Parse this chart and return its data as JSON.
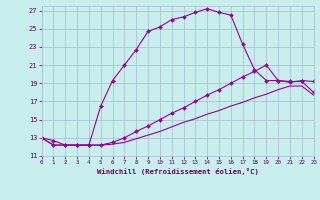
{
  "bg_color": "#c8eeee",
  "line_color": "#990099",
  "grid_color": "#aabbcc",
  "xlim": [
    0,
    23
  ],
  "ylim": [
    11,
    27.5
  ],
  "yticks": [
    11,
    13,
    15,
    17,
    19,
    21,
    23,
    25,
    27
  ],
  "xticks": [
    0,
    1,
    2,
    3,
    4,
    5,
    6,
    7,
    8,
    9,
    10,
    11,
    12,
    13,
    14,
    15,
    16,
    17,
    18,
    19,
    20,
    21,
    22,
    23
  ],
  "xlabel": "Windchill (Refroidissement éolien,°C)",
  "line1_x": [
    0,
    1,
    2,
    3,
    4,
    5,
    6,
    7,
    8,
    9,
    10,
    11,
    12,
    13,
    14,
    15,
    16,
    17,
    18,
    19,
    20,
    21,
    22,
    23
  ],
  "line1_y": [
    13.0,
    12.7,
    12.2,
    12.2,
    12.2,
    16.5,
    19.3,
    21.0,
    22.7,
    24.7,
    25.2,
    26.0,
    26.3,
    26.8,
    27.2,
    26.8,
    26.5,
    23.3,
    20.5,
    19.3,
    19.3,
    19.1,
    19.3,
    19.2
  ],
  "line2_x": [
    0,
    1,
    2,
    3,
    4,
    5,
    6,
    7,
    8,
    9,
    10,
    11,
    12,
    13,
    14,
    15,
    16,
    17,
    18,
    19,
    20,
    21,
    22,
    23
  ],
  "line2_y": [
    13.0,
    12.2,
    12.2,
    12.2,
    12.2,
    12.2,
    12.5,
    13.0,
    13.7,
    14.3,
    15.0,
    15.7,
    16.3,
    17.0,
    17.7,
    18.3,
    19.0,
    19.7,
    20.3,
    21.0,
    19.3,
    19.2,
    19.2,
    18.0
  ],
  "line3_x": [
    0,
    1,
    2,
    3,
    4,
    5,
    6,
    7,
    8,
    9,
    10,
    11,
    12,
    13,
    14,
    15,
    16,
    17,
    18,
    19,
    20,
    21,
    22,
    23
  ],
  "line3_y": [
    13.0,
    12.2,
    12.2,
    12.2,
    12.2,
    12.2,
    12.3,
    12.5,
    12.9,
    13.3,
    13.7,
    14.2,
    14.7,
    15.1,
    15.6,
    16.0,
    16.5,
    16.9,
    17.4,
    17.8,
    18.3,
    18.7,
    18.7,
    17.7
  ]
}
